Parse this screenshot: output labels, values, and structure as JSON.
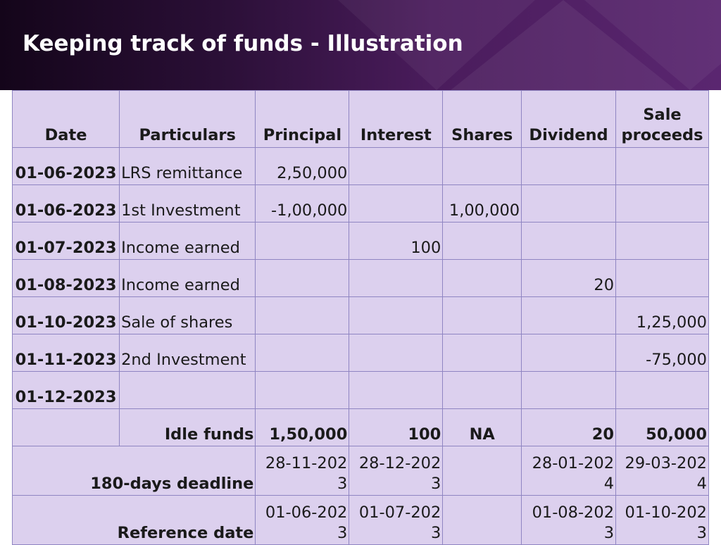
{
  "slide": {
    "title": "Keeping track of funds - Illustration"
  },
  "table": {
    "headers": [
      "Date",
      "Particulars",
      "Principal",
      "Interest",
      "Shares",
      "Dividend",
      "Sale proceeds"
    ],
    "rows": [
      {
        "date": "01-06-2023",
        "particulars": "LRS remittance",
        "principal": "2,50,000",
        "interest": "",
        "shares": "",
        "dividend": "",
        "sale": ""
      },
      {
        "date": "01-06-2023",
        "particulars": "1st Investment",
        "principal": "-1,00,000",
        "interest": "",
        "shares": "1,00,000",
        "dividend": "",
        "sale": ""
      },
      {
        "date": "01-07-2023",
        "particulars": "Income earned",
        "principal": "",
        "interest": "100",
        "shares": "",
        "dividend": "",
        "sale": ""
      },
      {
        "date": "01-08-2023",
        "particulars": "Income earned",
        "principal": "",
        "interest": "",
        "shares": "",
        "dividend": "20",
        "sale": ""
      },
      {
        "date": "01-10-2023",
        "particulars": "Sale of shares",
        "principal": "",
        "interest": "",
        "shares": "",
        "dividend": "",
        "sale": "1,25,000"
      },
      {
        "date": "01-11-2023",
        "particulars": "2nd Investment",
        "principal": "",
        "interest": "",
        "shares": "",
        "dividend": "",
        "sale": "-75,000"
      },
      {
        "date": "01-12-2023",
        "particulars": "",
        "principal": "",
        "interest": "",
        "shares": "",
        "dividend": "",
        "sale": ""
      }
    ],
    "idle": {
      "label": "Idle funds",
      "principal": "1,50,000",
      "interest": "100",
      "shares": "NA",
      "dividend": "20",
      "sale": "50,000"
    },
    "deadline": {
      "label": "180-days deadline",
      "principal": "28-11-2023",
      "interest": "28-12-2023",
      "shares": "",
      "dividend": "28-01-2024",
      "sale": "29-03-2024"
    },
    "reference": {
      "label": "Reference date",
      "principal": "01-06-2023",
      "interest": "01-07-2023",
      "shares": "",
      "dividend": "01-08-2023",
      "sale": "01-10-2023"
    }
  }
}
